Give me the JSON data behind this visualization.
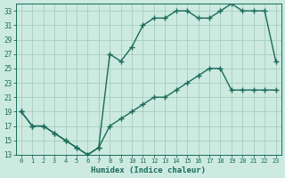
{
  "xlabel": "Humidex (Indice chaleur)",
  "background_color": "#cceae0",
  "line_color": "#1a6b5a",
  "xlim": [
    -0.5,
    23.5
  ],
  "ylim": [
    13,
    34
  ],
  "yticks": [
    13,
    15,
    17,
    19,
    21,
    23,
    25,
    27,
    29,
    31,
    33
  ],
  "xticks": [
    0,
    1,
    2,
    3,
    4,
    5,
    6,
    7,
    8,
    9,
    10,
    11,
    12,
    13,
    14,
    15,
    16,
    17,
    18,
    19,
    20,
    21,
    22,
    23
  ],
  "line1_x": [
    0,
    1,
    2,
    3,
    4,
    5,
    6,
    7,
    8,
    9,
    10,
    11,
    12,
    13,
    14,
    15,
    16,
    17,
    18,
    19,
    20,
    21,
    22,
    23
  ],
  "line1_y": [
    19,
    17,
    17,
    16,
    15,
    14,
    13,
    14,
    27,
    26,
    28,
    31,
    32,
    32,
    33,
    33,
    32,
    32,
    33,
    34,
    33,
    33,
    33,
    26
  ],
  "line2_x": [
    0,
    1,
    2,
    3,
    4,
    5,
    6,
    7,
    8,
    9,
    10,
    11,
    12,
    13,
    14,
    15,
    16,
    17,
    18,
    19,
    20,
    21,
    22,
    23
  ],
  "line2_y": [
    19,
    17,
    17,
    16,
    15,
    14,
    13,
    14,
    17,
    18,
    19,
    20,
    21,
    21,
    22,
    23,
    24,
    25,
    25,
    22,
    22,
    22,
    22,
    22
  ],
  "marker": "+",
  "markersize": 4,
  "linewidth": 1.0
}
